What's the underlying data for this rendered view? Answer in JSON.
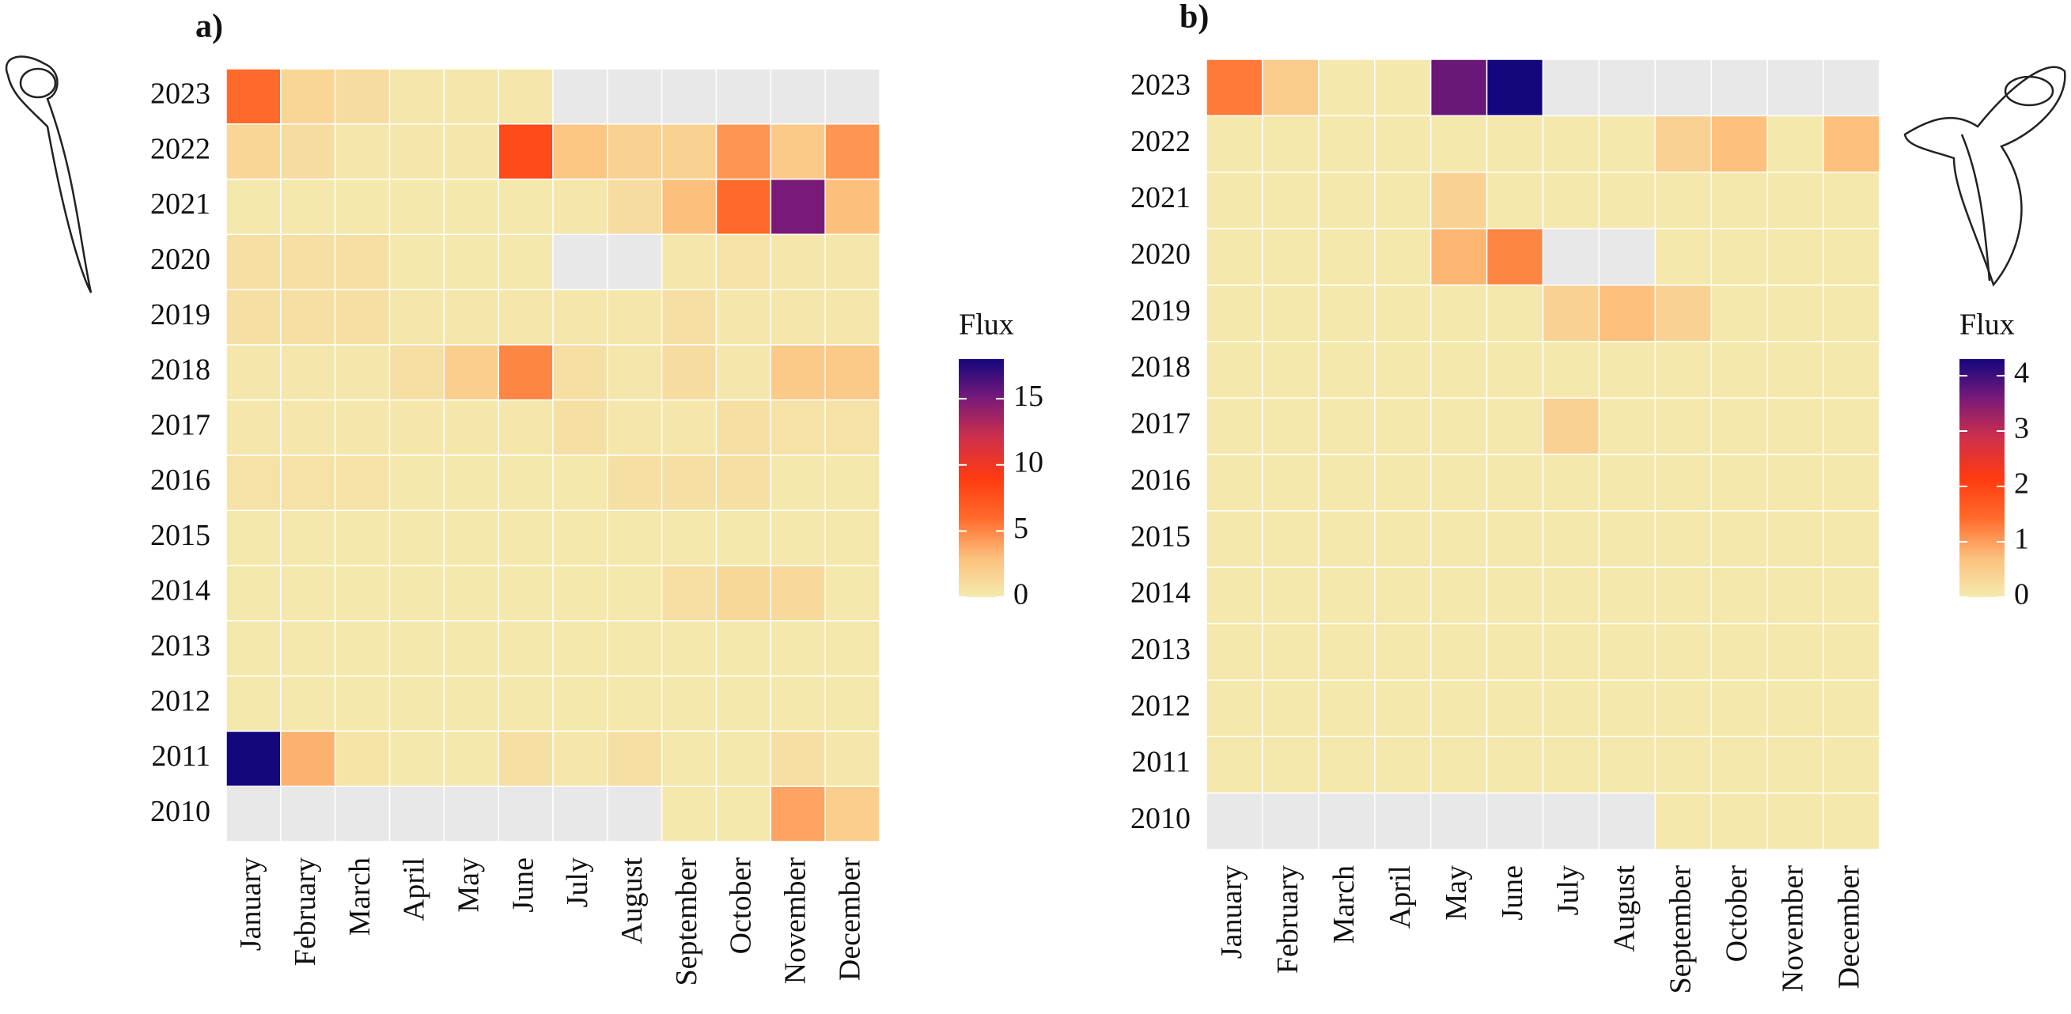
{
  "chart_data": [
    {
      "type": "heatmap",
      "title": "a)",
      "categories": [
        "January",
        "February",
        "March",
        "April",
        "May",
        "June",
        "July",
        "August",
        "September",
        "October",
        "November",
        "December"
      ],
      "y_categories": [
        "2023",
        "2022",
        "2021",
        "2020",
        "2019",
        "2018",
        "2017",
        "2016",
        "2015",
        "2014",
        "2013",
        "2012",
        "2011",
        "2010"
      ],
      "values": [
        [
          6,
          1.5,
          1,
          0.3,
          0.3,
          0.3,
          null,
          null,
          null,
          null,
          null,
          null
        ],
        [
          1.5,
          1,
          0.3,
          0.3,
          0.3,
          8,
          2.5,
          1.8,
          1.8,
          4.5,
          2.3,
          4.5
        ],
        [
          0.2,
          0.2,
          0.2,
          0.2,
          0.2,
          0.2,
          0.3,
          1,
          3,
          6,
          15,
          3
        ],
        [
          0.8,
          0.8,
          0.8,
          0.2,
          0.2,
          0.2,
          null,
          null,
          0.3,
          0.6,
          0.3,
          0.3
        ],
        [
          0.8,
          0.8,
          0.8,
          0.3,
          0.3,
          0.3,
          0.3,
          0.3,
          0.8,
          0.3,
          0.3,
          0.3
        ],
        [
          0.3,
          0.3,
          0.3,
          0.8,
          2,
          5,
          0.8,
          0.3,
          1,
          0.3,
          2.3,
          2.3
        ],
        [
          0.3,
          0.3,
          0.3,
          0.3,
          0.3,
          0.3,
          0.8,
          0.3,
          0.3,
          0.8,
          0.6,
          0.6
        ],
        [
          0.6,
          0.6,
          0.6,
          0.2,
          0.2,
          0.2,
          0.2,
          0.8,
          0.8,
          0.8,
          0.2,
          0.2
        ],
        [
          0.2,
          0.2,
          0.2,
          0.2,
          0.2,
          0.2,
          0.2,
          0.2,
          0.2,
          0.2,
          0.2,
          0.2
        ],
        [
          0.2,
          0.2,
          0.2,
          0.2,
          0.2,
          0.2,
          0.2,
          0.2,
          0.8,
          1.3,
          1.2,
          0.2
        ],
        [
          0.2,
          0.2,
          0.2,
          0.2,
          0.2,
          0.2,
          0.2,
          0.2,
          0.2,
          0.2,
          0.2,
          0.2
        ],
        [
          0.2,
          0.2,
          0.2,
          0.2,
          0.2,
          0.2,
          0.2,
          0.2,
          0.2,
          0.2,
          0.2,
          0.2
        ],
        [
          18,
          3.5,
          0.5,
          0.2,
          0.2,
          0.8,
          0.3,
          0.8,
          0.2,
          0.2,
          0.8,
          0.3
        ],
        [
          null,
          null,
          null,
          null,
          null,
          null,
          null,
          null,
          0.2,
          0.2,
          4,
          2
        ]
      ],
      "colorbar_title": "Flux",
      "zlim": [
        0,
        18
      ],
      "zticks": [
        0,
        5,
        10,
        15
      ],
      "colorscale": [
        "#f4ebb0",
        "#fdbf7c",
        "#ff6a2a",
        "#ff3a10",
        "#d0304a",
        "#7a1a78",
        "#14077e"
      ],
      "na_color": "#e8e8e8"
    },
    {
      "type": "heatmap",
      "title": "b)",
      "categories": [
        "January",
        "February",
        "March",
        "April",
        "May",
        "June",
        "July",
        "August",
        "September",
        "October",
        "November",
        "December"
      ],
      "y_categories": [
        "2023",
        "2022",
        "2021",
        "2020",
        "2019",
        "2018",
        "2017",
        "2016",
        "2015",
        "2014",
        "2013",
        "2012",
        "2011",
        "2010"
      ],
      "values": [
        [
          1.3,
          0.5,
          0.05,
          0.05,
          3.7,
          4.3,
          null,
          null,
          null,
          null,
          null,
          null
        ],
        [
          0.05,
          0.05,
          0.05,
          0.05,
          0.05,
          0.05,
          0.05,
          0.05,
          0.4,
          0.7,
          0.05,
          0.7
        ],
        [
          0.05,
          0.05,
          0.05,
          0.05,
          0.4,
          0.05,
          0.05,
          0.05,
          0.05,
          0.05,
          0.05,
          0.05
        ],
        [
          0.05,
          0.05,
          0.05,
          0.05,
          0.8,
          1.2,
          null,
          null,
          0.05,
          0.05,
          0.05,
          0.05
        ],
        [
          0.05,
          0.05,
          0.05,
          0.05,
          0.05,
          0.05,
          0.4,
          0.7,
          0.4,
          0.05,
          0.05,
          0.05
        ],
        [
          0.05,
          0.05,
          0.05,
          0.05,
          0.05,
          0.05,
          0.05,
          0.05,
          0.05,
          0.05,
          0.05,
          0.05
        ],
        [
          0.05,
          0.05,
          0.05,
          0.05,
          0.05,
          0.05,
          0.4,
          0.05,
          0.05,
          0.05,
          0.05,
          0.05
        ],
        [
          0.05,
          0.05,
          0.05,
          0.05,
          0.05,
          0.05,
          0.05,
          0.05,
          0.05,
          0.05,
          0.05,
          0.05
        ],
        [
          0.05,
          0.05,
          0.05,
          0.05,
          0.05,
          0.05,
          0.05,
          0.05,
          0.05,
          0.05,
          0.05,
          0.05
        ],
        [
          0.05,
          0.05,
          0.05,
          0.05,
          0.05,
          0.05,
          0.05,
          0.05,
          0.05,
          0.05,
          0.05,
          0.05
        ],
        [
          0.05,
          0.05,
          0.05,
          0.05,
          0.05,
          0.05,
          0.05,
          0.05,
          0.05,
          0.05,
          0.05,
          0.05
        ],
        [
          0.05,
          0.05,
          0.05,
          0.05,
          0.05,
          0.05,
          0.05,
          0.05,
          0.05,
          0.05,
          0.05,
          0.05
        ],
        [
          0.05,
          0.05,
          0.05,
          0.05,
          0.05,
          0.05,
          0.05,
          0.05,
          0.05,
          0.05,
          0.05,
          0.05
        ],
        [
          null,
          null,
          null,
          null,
          null,
          null,
          null,
          null,
          0.05,
          0.05,
          0.05,
          0.05
        ]
      ],
      "colorbar_title": "Flux",
      "zlim": [
        0,
        4.3
      ],
      "zticks": [
        0,
        1,
        2,
        3,
        4
      ],
      "colorscale": [
        "#f4ebb0",
        "#fdbf7c",
        "#ff6a2a",
        "#ff3a10",
        "#d0304a",
        "#7a1a78",
        "#14077e"
      ],
      "na_color": "#e8e8e8"
    }
  ]
}
